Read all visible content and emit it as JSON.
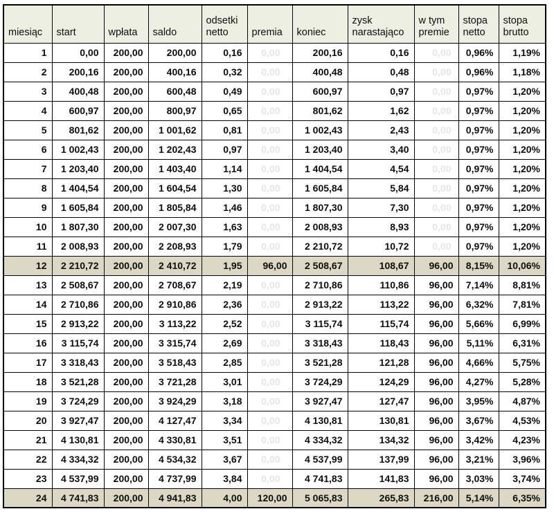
{
  "colors": {
    "header_bg": "#edefe2",
    "highlight_row_bg": "#dcd8c4",
    "border": "#000000",
    "faint_text": "#e7e5e1",
    "text": "#0d0d0d"
  },
  "table": {
    "columns": [
      {
        "key": "month",
        "label": "miesiąc"
      },
      {
        "key": "start",
        "label": "start"
      },
      {
        "key": "deposit",
        "label": "wpłata"
      },
      {
        "key": "balance",
        "label": "saldo"
      },
      {
        "key": "interest_net",
        "label": "odsetki netto"
      },
      {
        "key": "bonus",
        "label": "premia"
      },
      {
        "key": "end",
        "label": "koniec"
      },
      {
        "key": "profit_cum",
        "label": "zysk narastająco"
      },
      {
        "key": "bonuses_total",
        "label": "w tym premie"
      },
      {
        "key": "rate_net",
        "label": "stopa netto"
      },
      {
        "key": "rate_gross",
        "label": "stopa brutto"
      }
    ],
    "rows": [
      {
        "cells": [
          "1",
          "0,00",
          "200,00",
          "200,00",
          "0,16",
          "0,00",
          "200,16",
          "0,16",
          "0,00",
          "0,96%",
          "1,19%"
        ],
        "highlight": false,
        "faint_cols": [
          5,
          8
        ]
      },
      {
        "cells": [
          "2",
          "200,16",
          "200,00",
          "400,16",
          "0,32",
          "0,00",
          "400,48",
          "0,48",
          "0,00",
          "0,96%",
          "1,18%"
        ],
        "highlight": false,
        "faint_cols": [
          5,
          8
        ]
      },
      {
        "cells": [
          "3",
          "400,48",
          "200,00",
          "600,48",
          "0,49",
          "0,00",
          "600,97",
          "0,97",
          "0,00",
          "0,97%",
          "1,20%"
        ],
        "highlight": false,
        "faint_cols": [
          5,
          8
        ]
      },
      {
        "cells": [
          "4",
          "600,97",
          "200,00",
          "800,97",
          "0,65",
          "0,00",
          "801,62",
          "1,62",
          "0,00",
          "0,97%",
          "1,20%"
        ],
        "highlight": false,
        "faint_cols": [
          5,
          8
        ]
      },
      {
        "cells": [
          "5",
          "801,62",
          "200,00",
          "1 001,62",
          "0,81",
          "0,00",
          "1 002,43",
          "2,43",
          "0,00",
          "0,97%",
          "1,20%"
        ],
        "highlight": false,
        "faint_cols": [
          5,
          8
        ]
      },
      {
        "cells": [
          "6",
          "1 002,43",
          "200,00",
          "1 202,43",
          "0,97",
          "0,00",
          "1 203,40",
          "3,40",
          "0,00",
          "0,97%",
          "1,20%"
        ],
        "highlight": false,
        "faint_cols": [
          5,
          8
        ]
      },
      {
        "cells": [
          "7",
          "1 203,40",
          "200,00",
          "1 403,40",
          "1,14",
          "0,00",
          "1 404,54",
          "4,54",
          "0,00",
          "0,97%",
          "1,20%"
        ],
        "highlight": false,
        "faint_cols": [
          5,
          8
        ]
      },
      {
        "cells": [
          "8",
          "1 404,54",
          "200,00",
          "1 604,54",
          "1,30",
          "0,00",
          "1 605,84",
          "5,84",
          "0,00",
          "0,97%",
          "1,20%"
        ],
        "highlight": false,
        "faint_cols": [
          5,
          8
        ]
      },
      {
        "cells": [
          "9",
          "1 605,84",
          "200,00",
          "1 805,84",
          "1,46",
          "0,00",
          "1 807,30",
          "7,30",
          "0,00",
          "0,97%",
          "1,20%"
        ],
        "highlight": false,
        "faint_cols": [
          5,
          8
        ]
      },
      {
        "cells": [
          "10",
          "1 807,30",
          "200,00",
          "2 007,30",
          "1,63",
          "0,00",
          "2 008,93",
          "8,93",
          "0,00",
          "0,97%",
          "1,20%"
        ],
        "highlight": false,
        "faint_cols": [
          5,
          8
        ]
      },
      {
        "cells": [
          "11",
          "2 008,93",
          "200,00",
          "2 208,93",
          "1,79",
          "0,00",
          "2 210,72",
          "10,72",
          "0,00",
          "0,97%",
          "1,20%"
        ],
        "highlight": false,
        "faint_cols": [
          5,
          8
        ]
      },
      {
        "cells": [
          "12",
          "2 210,72",
          "200,00",
          "2 410,72",
          "1,95",
          "96,00",
          "2 508,67",
          "108,67",
          "96,00",
          "8,15%",
          "10,06%"
        ],
        "highlight": true,
        "faint_cols": []
      },
      {
        "cells": [
          "13",
          "2 508,67",
          "200,00",
          "2 708,67",
          "2,19",
          "0,00",
          "2 710,86",
          "110,86",
          "96,00",
          "7,14%",
          "8,81%"
        ],
        "highlight": false,
        "faint_cols": [
          5
        ]
      },
      {
        "cells": [
          "14",
          "2 710,86",
          "200,00",
          "2 910,86",
          "2,36",
          "0,00",
          "2 913,22",
          "113,22",
          "96,00",
          "6,32%",
          "7,81%"
        ],
        "highlight": false,
        "faint_cols": [
          5
        ]
      },
      {
        "cells": [
          "15",
          "2 913,22",
          "200,00",
          "3 113,22",
          "2,52",
          "0,00",
          "3 115,74",
          "115,74",
          "96,00",
          "5,66%",
          "6,99%"
        ],
        "highlight": false,
        "faint_cols": [
          5
        ]
      },
      {
        "cells": [
          "16",
          "3 115,74",
          "200,00",
          "3 315,74",
          "2,69",
          "0,00",
          "3 318,43",
          "118,43",
          "96,00",
          "5,11%",
          "6,31%"
        ],
        "highlight": false,
        "faint_cols": [
          5
        ]
      },
      {
        "cells": [
          "17",
          "3 318,43",
          "200,00",
          "3 518,43",
          "2,85",
          "0,00",
          "3 521,28",
          "121,28",
          "96,00",
          "4,66%",
          "5,75%"
        ],
        "highlight": false,
        "faint_cols": [
          5
        ]
      },
      {
        "cells": [
          "18",
          "3 521,28",
          "200,00",
          "3 721,28",
          "3,01",
          "0,00",
          "3 724,29",
          "124,29",
          "96,00",
          "4,27%",
          "5,28%"
        ],
        "highlight": false,
        "faint_cols": [
          5
        ]
      },
      {
        "cells": [
          "19",
          "3 724,29",
          "200,00",
          "3 924,29",
          "3,18",
          "0,00",
          "3 927,47",
          "127,47",
          "96,00",
          "3,95%",
          "4,87%"
        ],
        "highlight": false,
        "faint_cols": [
          5
        ]
      },
      {
        "cells": [
          "20",
          "3 927,47",
          "200,00",
          "4 127,47",
          "3,34",
          "0,00",
          "4 130,81",
          "130,81",
          "96,00",
          "3,67%",
          "4,53%"
        ],
        "highlight": false,
        "faint_cols": [
          5
        ]
      },
      {
        "cells": [
          "21",
          "4 130,81",
          "200,00",
          "4 330,81",
          "3,51",
          "0,00",
          "4 334,32",
          "134,32",
          "96,00",
          "3,42%",
          "4,23%"
        ],
        "highlight": false,
        "faint_cols": [
          5
        ]
      },
      {
        "cells": [
          "22",
          "4 334,32",
          "200,00",
          "4 534,32",
          "3,67",
          "0,00",
          "4 537,99",
          "137,99",
          "96,00",
          "3,21%",
          "3,96%"
        ],
        "highlight": false,
        "faint_cols": [
          5
        ]
      },
      {
        "cells": [
          "23",
          "4 537,99",
          "200,00",
          "4 737,99",
          "3,84",
          "0,00",
          "4 741,83",
          "141,83",
          "96,00",
          "3,03%",
          "3,74%"
        ],
        "highlight": false,
        "faint_cols": [
          5
        ]
      },
      {
        "cells": [
          "24",
          "4 741,83",
          "200,00",
          "4 941,83",
          "4,00",
          "120,00",
          "5 065,83",
          "265,83",
          "216,00",
          "5,14%",
          "6,35%"
        ],
        "highlight": true,
        "faint_cols": []
      }
    ]
  }
}
